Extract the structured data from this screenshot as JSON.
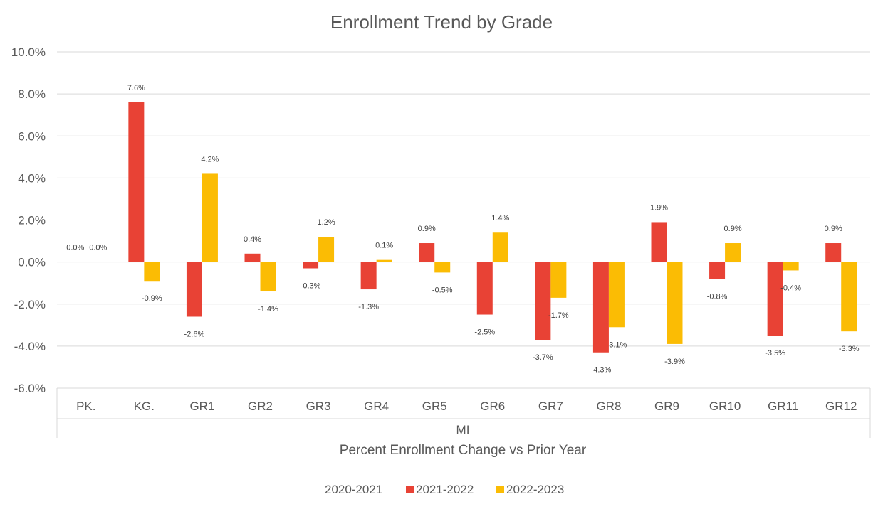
{
  "chart_data": {
    "type": "bar",
    "title": "Enrollment Trend by Grade",
    "categories": [
      "PK.",
      "KG.",
      "GR1",
      "GR2",
      "GR3",
      "GR4",
      "GR5",
      "GR6",
      "GR7",
      "GR8",
      "GR9",
      "GR10",
      "GR11",
      "GR12"
    ],
    "group_label": "MI",
    "xlabel": "Percent Enrollment Change vs Prior Year",
    "ylabel": "",
    "ylim": [
      -6,
      10
    ],
    "yticks": [
      10,
      8,
      6,
      4,
      2,
      0,
      -2,
      -4,
      -6
    ],
    "ytick_labels": [
      "10.0%",
      "8.0%",
      "6.0%",
      "4.0%",
      "2.0%",
      "0.0%",
      "-2.0%",
      "-4.0%",
      "-6.0%"
    ],
    "grid": true,
    "legend_position": "bottom",
    "series": [
      {
        "name": "2020-2021",
        "color": "#5B9BD5",
        "values": [
          0.0,
          null,
          null,
          null,
          null,
          null,
          null,
          null,
          null,
          null,
          null,
          null,
          null,
          null
        ],
        "labels": [
          "0.0%",
          "",
          "",
          "",
          "",
          "",
          "",
          "",
          "",
          "",
          "",
          "",
          "",
          ""
        ]
      },
      {
        "name": "2021-2022",
        "color": "#E84235",
        "values": [
          0.0,
          7.6,
          -2.6,
          0.4,
          -0.3,
          -1.3,
          0.9,
          -2.5,
          -3.7,
          -4.3,
          1.9,
          -0.8,
          -3.5,
          0.9
        ],
        "labels": [
          "0.0%",
          "7.6%",
          "-2.6%",
          "0.4%",
          "-0.3%",
          "-1.3%",
          "0.9%",
          "-2.5%",
          "-3.7%",
          "-4.3%",
          "1.9%",
          "-0.8%",
          "-3.5%",
          "0.9%"
        ]
      },
      {
        "name": "2022-2023",
        "color": "#FBBC04",
        "values": [
          null,
          -0.9,
          4.2,
          -1.4,
          1.2,
          0.1,
          -0.5,
          1.4,
          -1.7,
          -3.1,
          -3.9,
          0.9,
          -0.4,
          -3.3
        ],
        "labels": [
          "",
          "-0.9%",
          "4.2%",
          "-1.4%",
          "1.2%",
          "0.1%",
          "-0.5%",
          "1.4%",
          "-1.7%",
          "-3.1%",
          "-3.9%",
          "0.9%",
          "-0.4%",
          "-3.3%"
        ]
      }
    ]
  }
}
